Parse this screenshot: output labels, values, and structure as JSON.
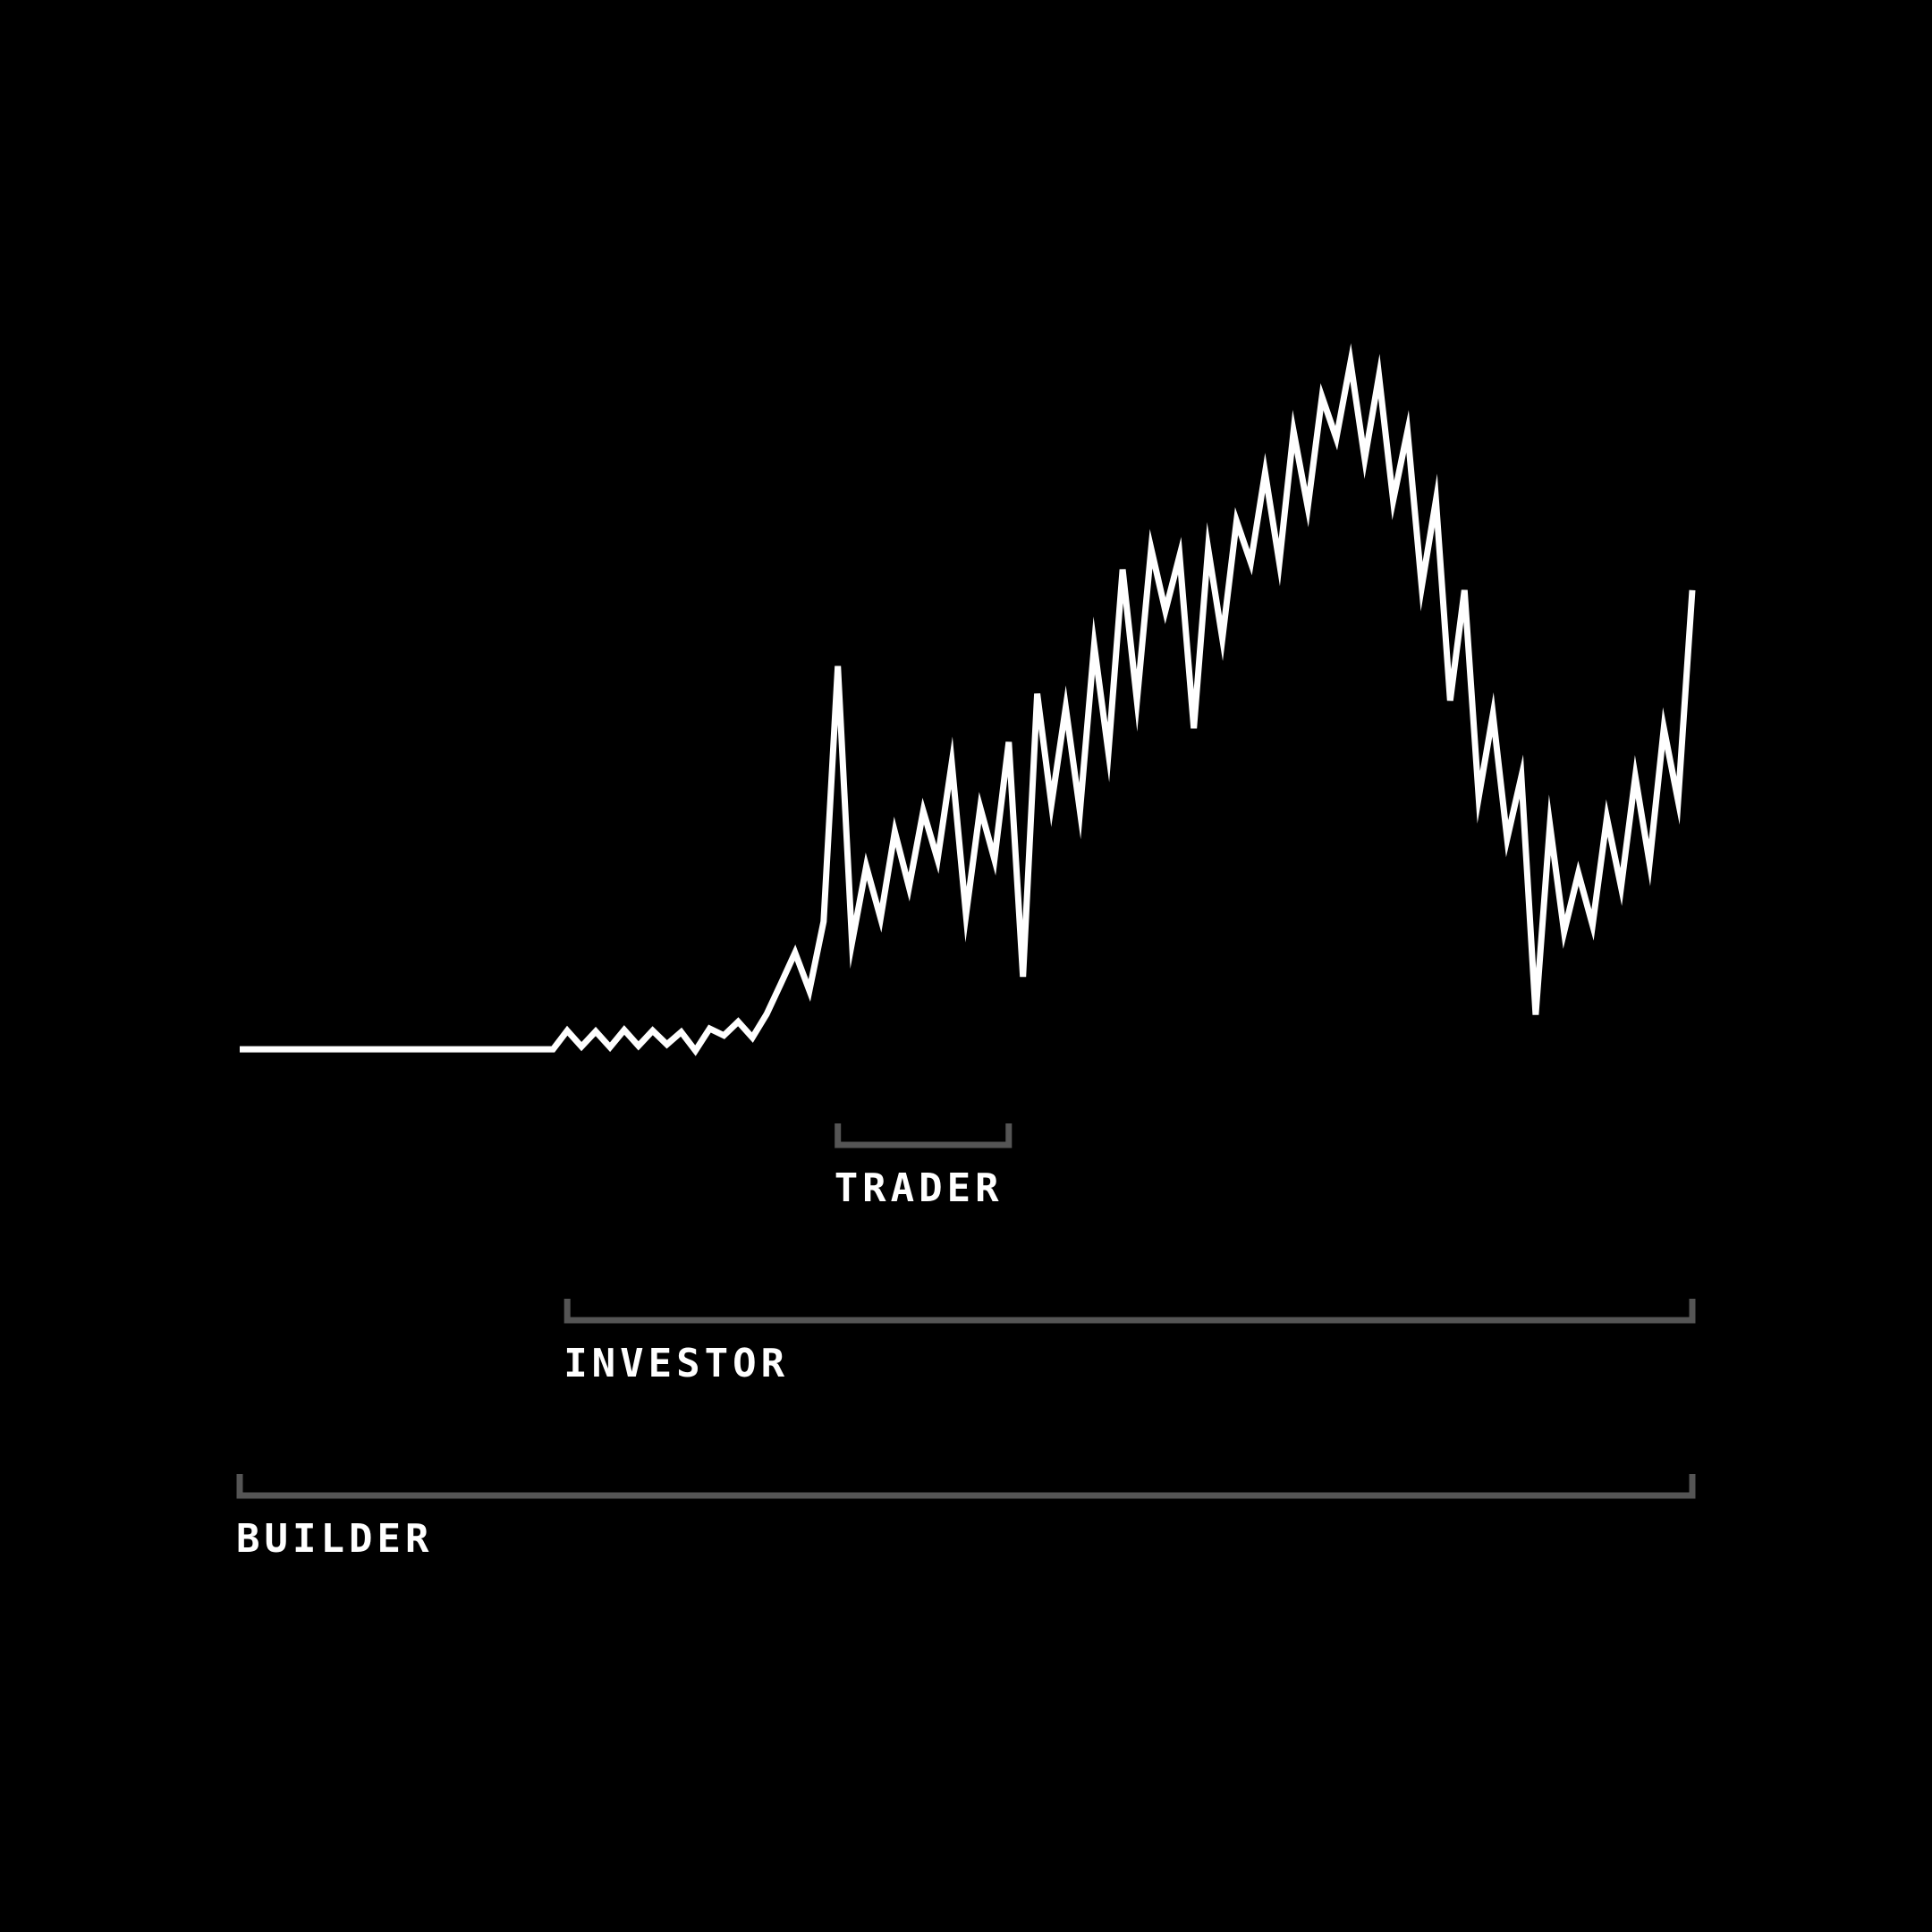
{
  "chart_data": {
    "type": "line",
    "title": "",
    "xlabel": "",
    "ylabel": "",
    "grid": false,
    "legend": "none",
    "xlim": [
      0,
      102
    ],
    "ylim": [
      0,
      100
    ],
    "series": [
      {
        "values": [
          0.5,
          0.5,
          0.5,
          0.5,
          0.5,
          0.5,
          0.5,
          0.5,
          0.5,
          0.5,
          0.5,
          0.5,
          0.5,
          0.5,
          0.5,
          0.5,
          0.5,
          0.5,
          0.5,
          0.5,
          0.5,
          0.5,
          0.5,
          3.2,
          0.9,
          3.1,
          0.8,
          3.3,
          1.0,
          3.2,
          1.2,
          3.0,
          0.3,
          3.5,
          2.5,
          4.5,
          2.2,
          5.6,
          10.0,
          14.5,
          9.0,
          19.0,
          56.0,
          16.0,
          27.0,
          19.5,
          32.0,
          24.0,
          35.0,
          28.0,
          42.0,
          20.0,
          35.5,
          28.0,
          45.0,
          11.0,
          52.0,
          36.0,
          50.0,
          35.0,
          59.0,
          43.5,
          70.0,
          51.0,
          73.0,
          64.0,
          72.0,
          47.0,
          73.0,
          60.0,
          77.0,
          71.0,
          84.0,
          71.0,
          90.0,
          79.0,
          95.0,
          89.0,
          100.0,
          86.0,
          98.0,
          80.0,
          90.0,
          67.5,
          80.0,
          51.0,
          67.0,
          37.0,
          49.0,
          31.0,
          40.0,
          5.5,
          33.0,
          17.5,
          26.0,
          18.5,
          34.0,
          24.0,
          40.0,
          27.5,
          47.0,
          36.5,
          67.0
        ]
      }
    ],
    "ranges": [
      {
        "label": "TRADER",
        "start": 42,
        "end": 54
      },
      {
        "label": "INVESTOR",
        "start": 23,
        "end": 102
      },
      {
        "label": "BUILDER",
        "start": 0,
        "end": 102
      }
    ]
  },
  "colors": {
    "background": "#000000",
    "line": "#ffffff",
    "bracket": "#555555",
    "label": "#ffffff"
  }
}
